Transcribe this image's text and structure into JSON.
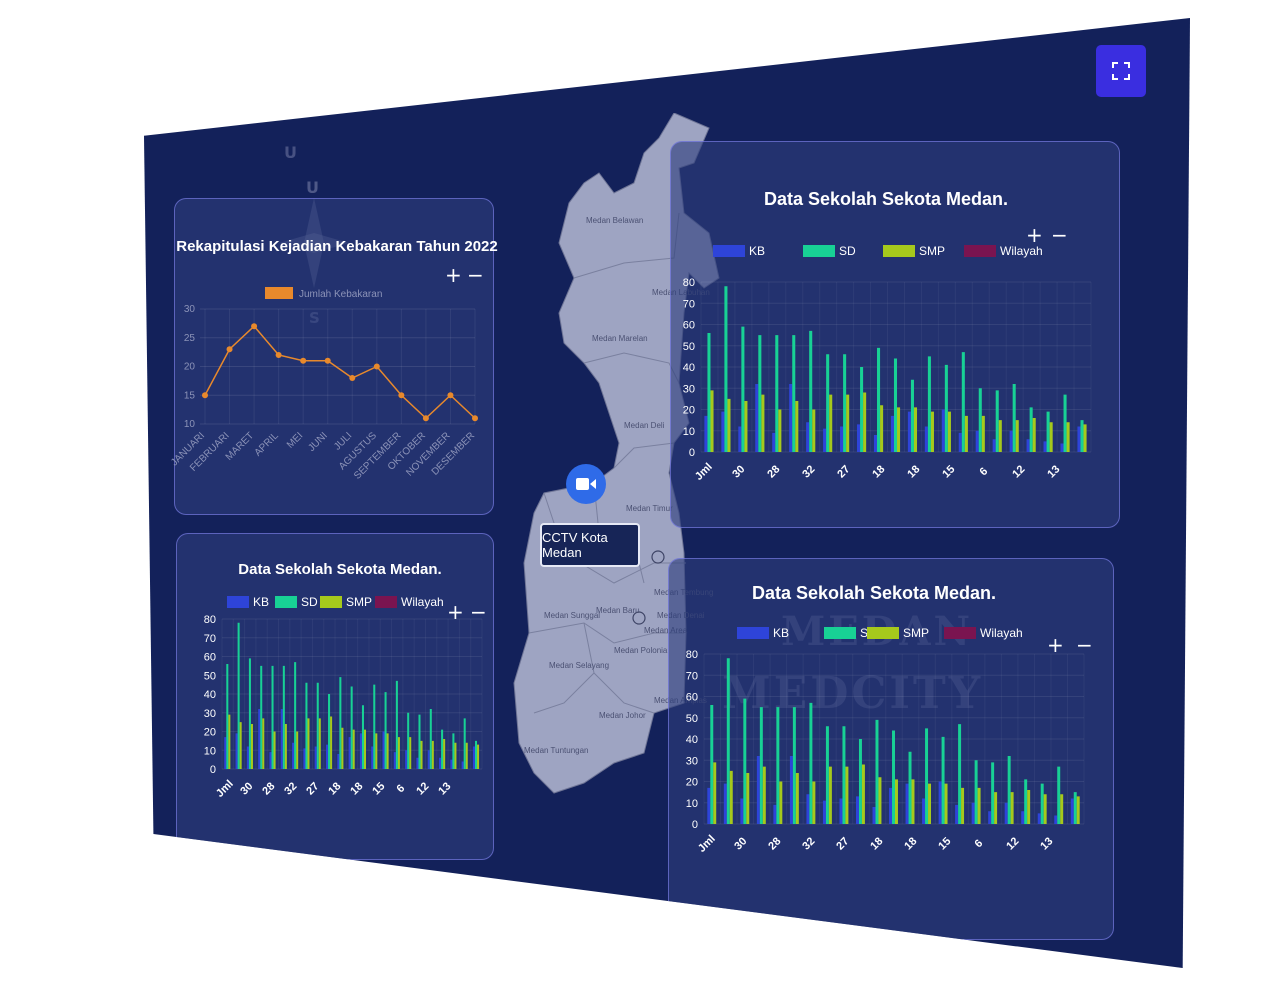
{
  "toolbar": {
    "expand_icon": "expand-icon"
  },
  "map": {
    "districts": [
      "Medan Belawan",
      "Medan Labuhan",
      "Medan Marelan",
      "Medan Deli",
      "Medan Timur",
      "Medan Tembung",
      "Medan Sunggal",
      "Medan Baru",
      "Medan Area",
      "Medan Denai",
      "Medan Selayang",
      "Medan Polonia",
      "Medan Amplas",
      "Medan Johor",
      "Medan Tuntungan"
    ],
    "cctv_label": "CCTV Kota Medan",
    "cctv_icon": "video-camera-icon",
    "compass_letters": [
      "U",
      "U",
      "S"
    ],
    "watermark_lines": [
      "MEDAN",
      "MEDCITY"
    ]
  },
  "zoom": {
    "plus": "+",
    "minus": "−"
  },
  "fire_chart": {
    "title": "Rekapitulasi Kejadian Kebakaran Tahun 2022",
    "legend": "Jumlah Kebakaran",
    "color": "#e8892c",
    "chart_data": {
      "type": "line",
      "categories": [
        "JANUARI",
        "FEBRUARI",
        "MARET",
        "APRIL",
        "MEI",
        "JUNI",
        "JULI",
        "AGUSTUS",
        "SEPTEMBER",
        "OKTOBER",
        "NOVEMBER",
        "DESEMBER"
      ],
      "series": [
        {
          "name": "Jumlah Kebakaran",
          "values": [
            15,
            23,
            27,
            22,
            21,
            21,
            18,
            20,
            15,
            11,
            15,
            11
          ]
        }
      ],
      "yticks": [
        10,
        15,
        20,
        25,
        30
      ],
      "ylim": [
        10,
        30
      ]
    }
  },
  "school_charts": [
    {
      "title": "Data Sekolah Sekota Medan.",
      "chart_data": {
        "type": "bar",
        "yticks": [
          0,
          10,
          20,
          30,
          40,
          50,
          60,
          70,
          80
        ],
        "ylim": [
          0,
          80
        ],
        "xticklabels": [
          "Jml",
          "30",
          "28",
          "32",
          "27",
          "18",
          "18",
          "15",
          "6",
          "12",
          "13"
        ],
        "series": [
          {
            "name": "KB",
            "color": "#2e44d9",
            "values": [
              17,
              19,
              12,
              32,
              9,
              32,
              14,
              11,
              12,
              13,
              8,
              17,
              19,
              12,
              20,
              9,
              10,
              6,
              10,
              6,
              5,
              4,
              12
            ]
          },
          {
            "name": "SD",
            "color": "#18d195",
            "values": [
              56,
              78,
              59,
              55,
              55,
              55,
              57,
              46,
              46,
              40,
              49,
              44,
              34,
              45,
              41,
              47,
              30,
              29,
              32,
              21,
              19,
              27,
              15
            ]
          },
          {
            "name": "SMP",
            "color": "#a6c91c",
            "values": [
              29,
              25,
              24,
              27,
              20,
              24,
              20,
              27,
              27,
              28,
              22,
              21,
              21,
              19,
              19,
              17,
              17,
              15,
              15,
              16,
              14,
              14,
              13
            ]
          },
          {
            "name": "Wilayah",
            "color": "#7a1450",
            "values": []
          }
        ]
      }
    },
    {
      "title": "Data Sekolah Sekota Medan.",
      "chart_data": {
        "type": "bar",
        "yticks": [
          0,
          10,
          20,
          30,
          40,
          50,
          60,
          70,
          80
        ],
        "ylim": [
          0,
          80
        ],
        "xticklabels": [
          "Jml",
          "30",
          "28",
          "32",
          "27",
          "18",
          "18",
          "15",
          "6",
          "12",
          "13"
        ],
        "series": [
          {
            "name": "KB",
            "color": "#2e44d9",
            "values": [
              17,
              19,
              12,
              32,
              9,
              32,
              14,
              11,
              12,
              13,
              8,
              17,
              19,
              12,
              20,
              9,
              10,
              6,
              10,
              6,
              5,
              4,
              12
            ]
          },
          {
            "name": "SD",
            "color": "#18d195",
            "values": [
              56,
              78,
              59,
              55,
              55,
              55,
              57,
              46,
              46,
              40,
              49,
              44,
              34,
              45,
              41,
              47,
              30,
              29,
              32,
              21,
              19,
              27,
              15
            ]
          },
          {
            "name": "SMP",
            "color": "#a6c91c",
            "values": [
              29,
              25,
              24,
              27,
              20,
              24,
              20,
              27,
              27,
              28,
              22,
              21,
              21,
              19,
              19,
              17,
              17,
              15,
              15,
              16,
              14,
              14,
              13
            ]
          },
          {
            "name": "Wilayah",
            "color": "#7a1450",
            "values": []
          }
        ]
      }
    },
    {
      "title": "Data Sekolah Sekota Medan.",
      "chart_data": {
        "type": "bar",
        "yticks": [
          0,
          10,
          20,
          30,
          40,
          50,
          60,
          70,
          80
        ],
        "ylim": [
          0,
          80
        ],
        "xticklabels": [
          "Jml",
          "30",
          "28",
          "32",
          "27",
          "18",
          "18",
          "15",
          "6",
          "12",
          "13"
        ],
        "series": [
          {
            "name": "KB",
            "color": "#2e44d9",
            "values": [
              17,
              19,
              12,
              32,
              9,
              32,
              14,
              11,
              12,
              13,
              8,
              17,
              19,
              12,
              20,
              9,
              10,
              6,
              10,
              6,
              5,
              4,
              12
            ]
          },
          {
            "name": "SD",
            "color": "#18d195",
            "values": [
              56,
              78,
              59,
              55,
              55,
              55,
              57,
              46,
              46,
              40,
              49,
              44,
              34,
              45,
              41,
              47,
              30,
              29,
              32,
              21,
              19,
              27,
              15
            ]
          },
          {
            "name": "SMP",
            "color": "#a6c91c",
            "values": [
              29,
              25,
              24,
              27,
              20,
              24,
              20,
              27,
              27,
              28,
              22,
              21,
              21,
              19,
              19,
              17,
              17,
              15,
              15,
              16,
              14,
              14,
              13
            ]
          },
          {
            "name": "Wilayah",
            "color": "#7a1450",
            "values": []
          }
        ]
      }
    }
  ]
}
